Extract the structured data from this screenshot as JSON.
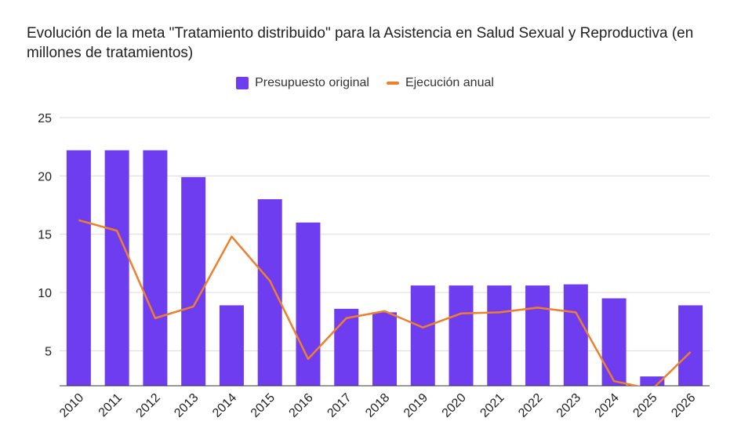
{
  "chart_data": {
    "type": "bar",
    "title": "Evolución de la meta \"Tratamiento distribuido\" para la Asistencia en Salud Sexual y Reproductiva (en millones de tratamientos)",
    "categories": [
      "2010",
      "2011",
      "2012",
      "2013",
      "2014",
      "2015",
      "2016",
      "2017",
      "2018",
      "2019",
      "2020",
      "2021",
      "2022",
      "2023",
      "2024",
      "2025",
      "2026"
    ],
    "series": [
      {
        "name": "Presupuesto original",
        "type": "bar",
        "color": "#6f3df0",
        "values": [
          22.2,
          22.2,
          22.2,
          19.9,
          8.9,
          18.0,
          16.0,
          8.6,
          8.3,
          10.6,
          10.6,
          10.6,
          10.6,
          10.7,
          9.5,
          2.8,
          8.9
        ]
      },
      {
        "name": "Ejecución anual",
        "type": "line",
        "color": "#f07f2b",
        "values": [
          16.2,
          15.3,
          7.8,
          8.8,
          14.8,
          11.0,
          4.3,
          7.8,
          8.4,
          7.0,
          8.2,
          8.3,
          8.7,
          8.3,
          2.4,
          1.7,
          4.9
        ]
      }
    ],
    "yticks": [
      5,
      10,
      15,
      20,
      25
    ],
    "ylim": [
      2,
      25
    ],
    "grid": true,
    "legend_position": "top"
  }
}
